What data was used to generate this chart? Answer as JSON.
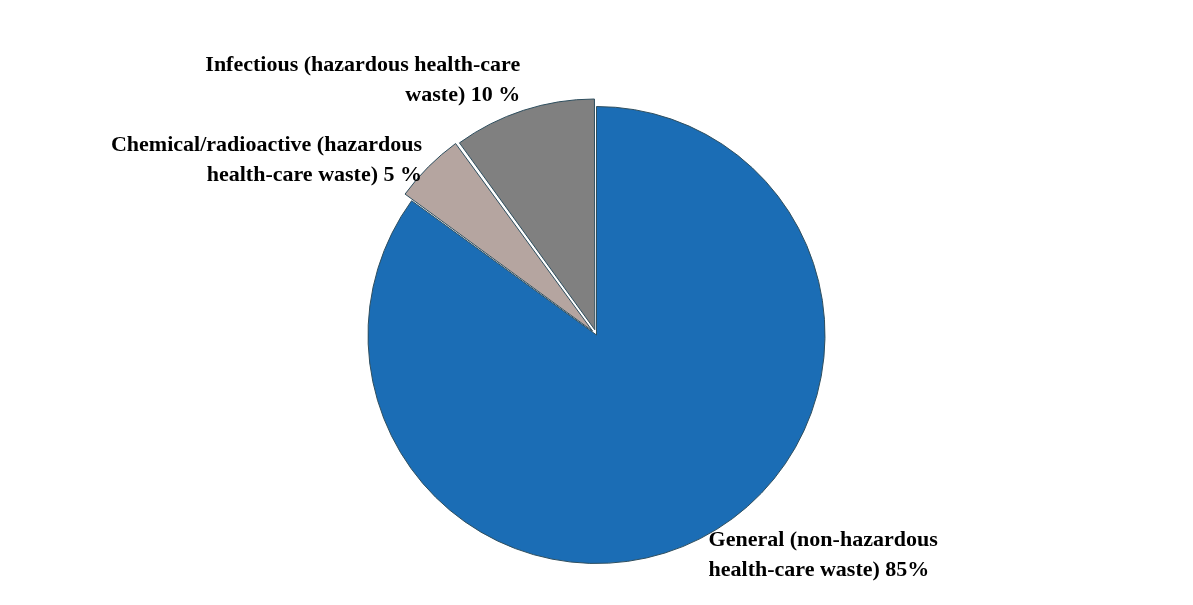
{
  "chart_data": {
    "type": "pie",
    "categories": [
      "General (non-hazardous health-care waste)",
      "Chemical/radioactive (hazardous health-care waste)",
      "Infectious (hazardous health-care waste)"
    ],
    "values": [
      85,
      5,
      10
    ],
    "value_labels": [
      "85%",
      "5 %",
      "10 %"
    ],
    "colors": [
      "#1b6db5",
      "#b5a5a0",
      "#808080"
    ],
    "legend": false
  }
}
